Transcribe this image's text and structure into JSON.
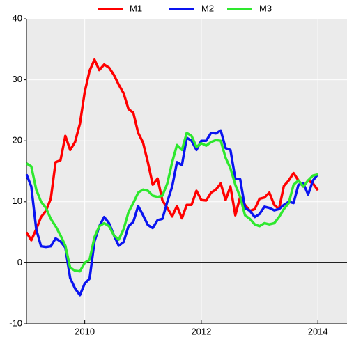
{
  "chart_data": {
    "type": "line",
    "x": [
      2009,
      2009.083,
      2009.167,
      2009.25,
      2009.333,
      2009.417,
      2009.5,
      2009.583,
      2009.667,
      2009.75,
      2009.833,
      2009.917,
      2010,
      2010.083,
      2010.167,
      2010.25,
      2010.333,
      2010.417,
      2010.5,
      2010.583,
      2010.667,
      2010.75,
      2010.833,
      2010.917,
      2011,
      2011.083,
      2011.167,
      2011.25,
      2011.333,
      2011.417,
      2011.5,
      2011.583,
      2011.667,
      2011.75,
      2011.833,
      2011.917,
      2012,
      2012.083,
      2012.167,
      2012.25,
      2012.333,
      2012.417,
      2012.5,
      2012.583,
      2012.667,
      2012.75,
      2012.833,
      2012.917,
      2013,
      2013.083,
      2013.167,
      2013.25,
      2013.333,
      2013.417,
      2013.5,
      2013.583,
      2013.667,
      2013.75,
      2013.833,
      2013.917,
      2014
    ],
    "series": [
      {
        "name": "M1",
        "color": "#ff0000",
        "values": [
          5,
          3.7,
          5.5,
          7.5,
          8.5,
          10.5,
          16.5,
          16.8,
          20.8,
          18.5,
          19.8,
          22.8,
          28,
          31.5,
          33.3,
          31.6,
          32.5,
          32,
          30.8,
          29.2,
          27.8,
          25.2,
          24.6,
          21.3,
          19.7,
          16.5,
          12.8,
          13.8,
          10.2,
          9,
          7.6,
          9.3,
          7.3,
          9.5,
          9.5,
          11.8,
          10.3,
          10.2,
          11.5,
          12,
          13,
          10.3,
          12.5,
          7.8,
          10.8,
          9.5,
          8.5,
          8.8,
          10.5,
          10.7,
          11.5,
          9.5,
          8.8,
          12.6,
          13.5,
          14.7,
          13.5,
          12.5,
          13.5,
          13,
          11.9
        ]
      },
      {
        "name": "M2",
        "color": "#0a14f0",
        "values": [
          14.5,
          12.5,
          5.5,
          2.7,
          2.6,
          2.7,
          4,
          3.5,
          2.5,
          -2.5,
          -4.2,
          -5.3,
          -3.4,
          -2.6,
          3.5,
          6,
          7.5,
          6.5,
          4.5,
          2.8,
          3.4,
          6,
          6.7,
          9.3,
          7.8,
          6.2,
          5.7,
          7,
          7.2,
          10,
          12.5,
          16.5,
          16,
          20.5,
          20,
          18.5,
          20,
          20,
          21.3,
          21.2,
          21.7,
          18.8,
          18.5,
          13.8,
          13.7,
          9,
          8.5,
          7.5,
          8,
          9.2,
          9,
          8.6,
          8.8,
          9.5,
          10,
          9.8,
          12.8,
          13,
          11.2,
          13.5,
          14.5
        ]
      },
      {
        "name": "M3",
        "color": "#2ee82e",
        "values": [
          16.3,
          15.8,
          12,
          10,
          9,
          7.2,
          6,
          4.5,
          2.8,
          -0.8,
          -1.3,
          -1.4,
          0,
          0.5,
          4.2,
          6,
          6.5,
          6,
          4.5,
          3.8,
          5.5,
          8.3,
          9.8,
          11.5,
          12,
          11.8,
          11,
          10.8,
          11,
          13,
          16.5,
          19.3,
          18.5,
          21.3,
          20.8,
          19,
          19.6,
          19.2,
          19.8,
          20.1,
          20,
          17.2,
          15.5,
          12.8,
          10.8,
          7.8,
          7.2,
          6.3,
          6,
          6.5,
          6.3,
          6.5,
          7.5,
          8.8,
          9.8,
          12.8,
          13.5,
          12.5,
          13.5,
          14.3,
          14.5
        ]
      }
    ],
    "xlim": [
      2009,
      2014.5
    ],
    "xticks": [
      2010,
      2012,
      2014
    ],
    "ylim": [
      -10,
      40
    ],
    "yticks": [
      -10,
      0,
      10,
      20,
      30,
      40
    ],
    "grid": true,
    "legend": "top"
  }
}
